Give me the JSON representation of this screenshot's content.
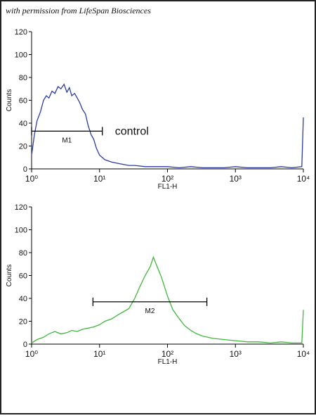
{
  "credit": "with permission from LifeSpan Biosciences",
  "chart_data": [
    {
      "type": "line",
      "xlabel": "FL1-H",
      "ylabel": "Counts",
      "xscale": "log",
      "xlim": [
        1,
        10000
      ],
      "ylim": [
        0,
        120
      ],
      "xticks": [
        {
          "value": 1,
          "label": "10⁰"
        },
        {
          "value": 10,
          "label": "10¹"
        },
        {
          "value": 100,
          "label": "10²"
        },
        {
          "value": 1000,
          "label": "10³"
        },
        {
          "value": 10000,
          "label": "10⁴"
        }
      ],
      "yticks": [
        0,
        20,
        40,
        60,
        80,
        100,
        120
      ],
      "x": [
        1,
        1.1,
        1.2,
        1.35,
        1.5,
        1.65,
        1.8,
        2,
        2.2,
        2.45,
        2.7,
        3,
        3.3,
        3.6,
        3.9,
        4.3,
        4.7,
        5.1,
        5.6,
        6.2,
        6.8,
        7.5,
        8.2,
        9,
        10,
        12,
        15,
        18,
        22,
        27,
        33,
        47,
        68,
        100,
        150,
        220,
        330,
        470,
        680,
        1000,
        1500,
        2200,
        3300,
        4700,
        6800,
        9500,
        10000
      ],
      "series": [
        {
          "name": "control",
          "color": "#2b3c9e",
          "values": [
            12,
            30,
            42,
            50,
            60,
            64,
            62,
            68,
            66,
            72,
            70,
            74,
            67,
            71,
            64,
            66,
            62,
            58,
            52,
            48,
            38,
            30,
            26,
            18,
            12,
            8,
            6,
            5,
            4,
            3,
            3,
            2,
            2,
            2,
            1,
            2,
            1,
            1,
            1,
            2,
            1,
            1,
            1,
            2,
            1,
            2,
            45
          ]
        }
      ],
      "gate": {
        "label": "M1",
        "x": [
          1,
          11
        ],
        "y": 33
      }
    },
    {
      "type": "line",
      "xlabel": "FL1-H",
      "ylabel": "Counts",
      "xscale": "log",
      "xlim": [
        1,
        10000
      ],
      "ylim": [
        0,
        120
      ],
      "xticks": [
        {
          "value": 1,
          "label": "10⁰"
        },
        {
          "value": 10,
          "label": "10¹"
        },
        {
          "value": 100,
          "label": "10²"
        },
        {
          "value": 1000,
          "label": "10³"
        },
        {
          "value": 10000,
          "label": "10⁴"
        }
      ],
      "yticks": [
        0,
        20,
        40,
        60,
        80,
        100,
        120
      ],
      "x": [
        1,
        1.2,
        1.5,
        1.8,
        2.2,
        2.7,
        3.3,
        3.9,
        4.7,
        5.6,
        6.8,
        8.2,
        10,
        12,
        15,
        18,
        22,
        27,
        33,
        39,
        47,
        56,
        62,
        68,
        82,
        100,
        120,
        150,
        180,
        220,
        270,
        330,
        470,
        680,
        1000,
        1500,
        2200,
        3300,
        4700,
        6800,
        9500,
        10000
      ],
      "series": [
        {
          "name": "",
          "color": "#41b83c",
          "values": [
            1,
            4,
            6,
            9,
            11,
            9,
            10,
            12,
            11,
            13,
            14,
            15,
            17,
            20,
            22,
            25,
            28,
            31,
            40,
            50,
            60,
            68,
            76,
            70,
            58,
            42,
            30,
            22,
            16,
            12,
            9,
            7,
            5,
            4,
            3,
            2,
            2,
            1,
            2,
            1,
            1,
            30
          ]
        }
      ],
      "gate": {
        "label": "M2",
        "x": [
          8,
          380
        ],
        "y": 37
      }
    }
  ],
  "annotation": "control"
}
